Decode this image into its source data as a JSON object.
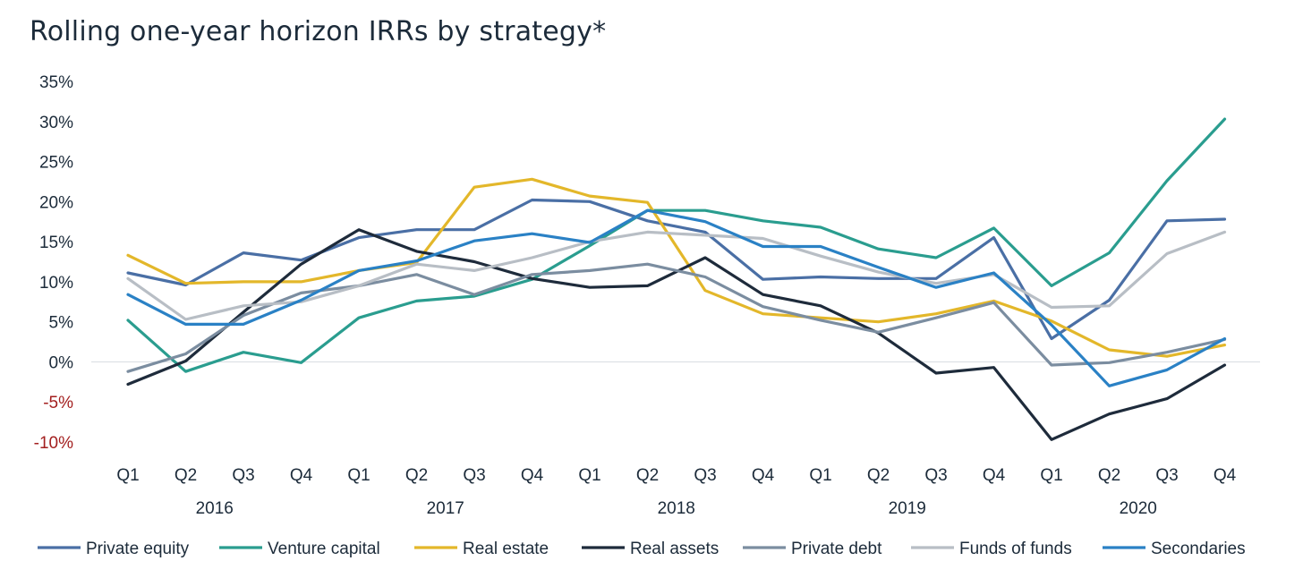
{
  "chart_data": {
    "type": "line",
    "title": "Rolling one-year horizon IRRs by strategy*",
    "ylim": [
      -10,
      35
    ],
    "yticks": [
      35,
      30,
      25,
      20,
      15,
      10,
      5,
      0,
      -5,
      -10
    ],
    "ytick_labels": [
      "35%",
      "30%",
      "25%",
      "20%",
      "15%",
      "10%",
      "5%",
      "0%",
      "-5%",
      "-10%"
    ],
    "negative_tick_color": "#a31f1f",
    "categories": [
      "Q1",
      "Q2",
      "Q3",
      "Q4",
      "Q1",
      "Q2",
      "Q3",
      "Q4",
      "Q1",
      "Q2",
      "Q3",
      "Q4",
      "Q1",
      "Q2",
      "Q3",
      "Q4",
      "Q1",
      "Q2",
      "Q3",
      "Q4"
    ],
    "years": [
      "2016",
      "2017",
      "2018",
      "2019",
      "2020"
    ],
    "grid": false,
    "zero_line": true,
    "legend_position": "bottom",
    "series": [
      {
        "name": "Private equity",
        "color": "#4a6fa5",
        "values": [
          11.1,
          9.6,
          13.6,
          12.7,
          15.5,
          16.5,
          16.5,
          20.2,
          20.0,
          17.6,
          16.2,
          10.3,
          10.6,
          10.4,
          10.4,
          15.5,
          2.9,
          7.7,
          17.6,
          17.8
        ]
      },
      {
        "name": "Venture capital",
        "color": "#2a9d8f",
        "values": [
          5.2,
          -1.2,
          1.2,
          -0.1,
          5.5,
          7.6,
          8.2,
          10.3,
          14.5,
          18.9,
          18.9,
          17.6,
          16.8,
          14.1,
          13.0,
          16.7,
          9.5,
          13.6,
          22.6,
          30.3
        ]
      },
      {
        "name": "Real estate",
        "color": "#e3b72a",
        "values": [
          13.3,
          9.8,
          10.0,
          10.0,
          11.4,
          12.4,
          21.8,
          22.8,
          20.7,
          19.9,
          8.9,
          6.0,
          5.5,
          5.0,
          6.0,
          7.6,
          5.1,
          1.5,
          0.7,
          2.1
        ]
      },
      {
        "name": "Real assets",
        "color": "#1e2b3b",
        "values": [
          -2.8,
          0.1,
          6.2,
          12.2,
          16.5,
          13.8,
          12.5,
          10.4,
          9.3,
          9.5,
          13.0,
          8.4,
          7.0,
          3.6,
          -1.4,
          -0.7,
          -9.7,
          -6.5,
          -4.6,
          -0.4
        ]
      },
      {
        "name": "Private debt",
        "color": "#7b8da0",
        "values": [
          -1.2,
          1.0,
          5.8,
          8.6,
          9.5,
          10.9,
          8.4,
          10.9,
          11.4,
          12.2,
          10.6,
          6.9,
          5.2,
          3.7,
          5.5,
          7.4,
          -0.4,
          -0.1,
          1.2,
          2.8
        ]
      },
      {
        "name": "Funds of funds",
        "color": "#b8bec5",
        "values": [
          10.4,
          5.3,
          7.0,
          7.5,
          9.5,
          12.2,
          11.4,
          13.0,
          15.0,
          16.2,
          15.8,
          15.4,
          13.2,
          11.2,
          9.8,
          10.9,
          6.8,
          7.0,
          13.5,
          16.2
        ]
      },
      {
        "name": "Secondaries",
        "color": "#2a81c5",
        "values": [
          8.4,
          4.7,
          4.7,
          7.7,
          11.4,
          12.6,
          15.1,
          16.0,
          14.9,
          18.9,
          17.5,
          14.4,
          14.4,
          11.8,
          9.3,
          11.1,
          4.6,
          -3.0,
          -1.0,
          2.9
        ]
      }
    ]
  }
}
